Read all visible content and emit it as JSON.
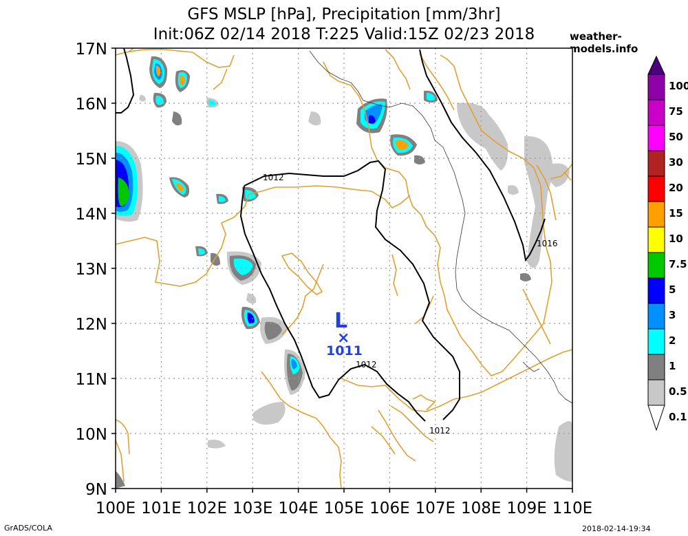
{
  "header": {
    "title_line1": "GFS MSLP [hPa], Precipitation [mm/3hr]",
    "title_line2": "Init:06Z 02/14 2018 T:225 Valid:15Z 02/23 2018",
    "site": "weather-models.info"
  },
  "footer": {
    "left": "GrADS/COLA",
    "right": "2018-02-14-19:34"
  },
  "map": {
    "lat_labels": [
      "17N",
      "16N",
      "15N",
      "14N",
      "13N",
      "12N",
      "11N",
      "10N",
      "9N"
    ],
    "lon_labels": [
      "100E",
      "101E",
      "102E",
      "103E",
      "104E",
      "105E",
      "106E",
      "107E",
      "108E",
      "109E",
      "110E"
    ],
    "low": {
      "letter": "L",
      "marker": "×",
      "value": "1011"
    },
    "isobar_labels": [
      "1012",
      "1012",
      "1012",
      "1016"
    ]
  },
  "colorbar": {
    "labels": [
      "100",
      "75",
      "50",
      "30",
      "20",
      "15",
      "10",
      "7.5",
      "5",
      "3",
      "2",
      "1",
      "0.5",
      "0.1"
    ],
    "colors": [
      "#4b0082",
      "#8e00a8",
      "#c800c8",
      "#ff00ff",
      "#b22222",
      "#ff0000",
      "#ffa000",
      "#ffff00",
      "#00c800",
      "#0000ff",
      "#0090ff",
      "#00ffff",
      "#808080",
      "#c8c8c8",
      "#ffffff"
    ]
  },
  "colors": {
    "coast": "#e0a030",
    "isobar": "#000000",
    "low": "#2040e0",
    "grid": "#999999"
  }
}
